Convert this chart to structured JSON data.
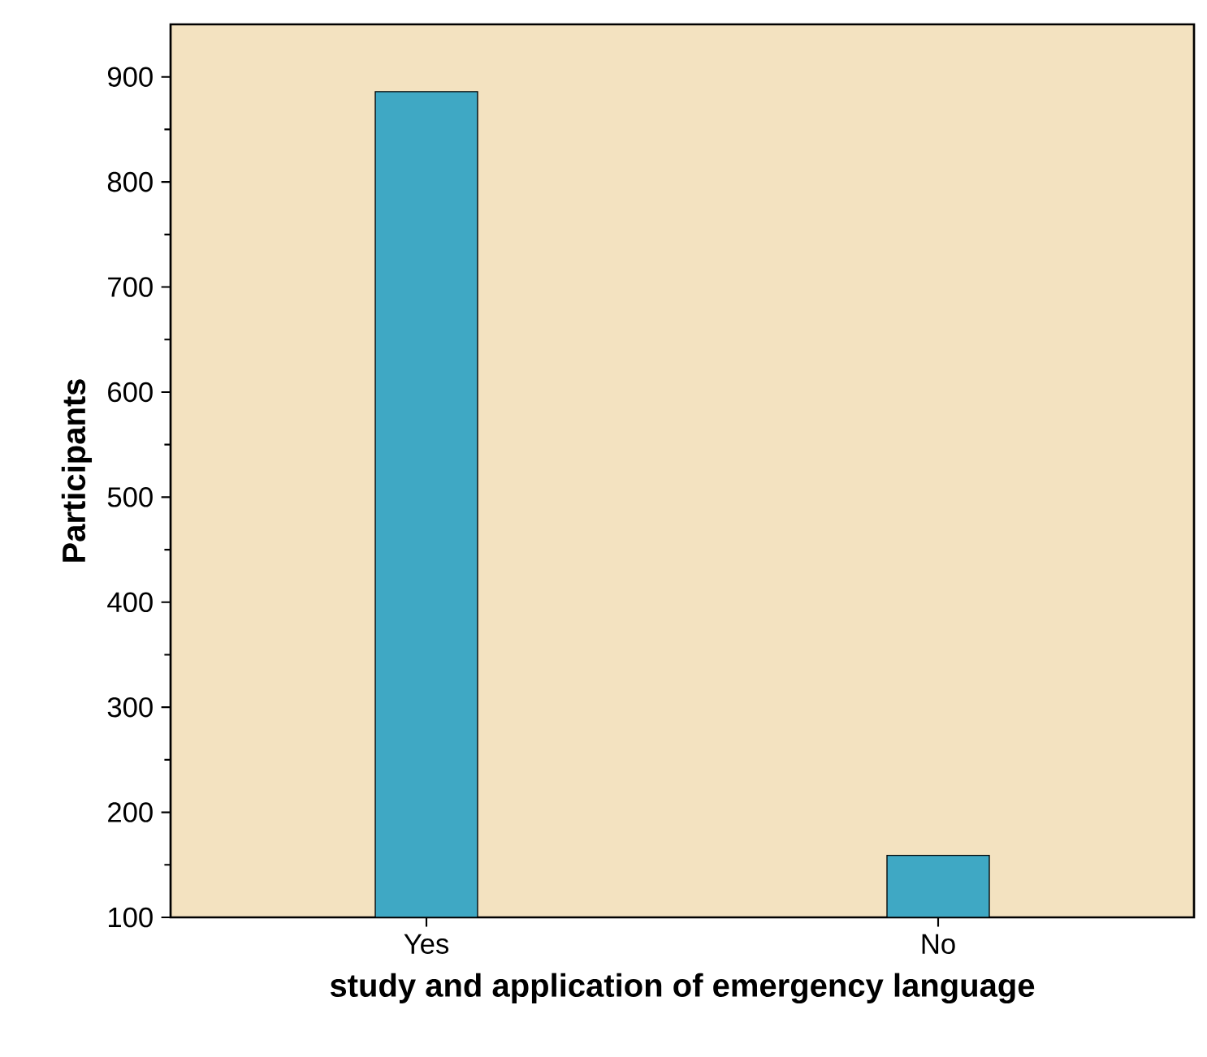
{
  "chart_data": {
    "type": "bar",
    "xlabel": "study and application of emergency language",
    "ylabel": "Participants",
    "categories": [
      "Yes",
      "No"
    ],
    "values": [
      886,
      159
    ],
    "color": "#3fa8c4",
    "ylim": [
      100,
      950
    ],
    "yticks": [
      100,
      200,
      300,
      400,
      500,
      600,
      700,
      800,
      900
    ]
  }
}
